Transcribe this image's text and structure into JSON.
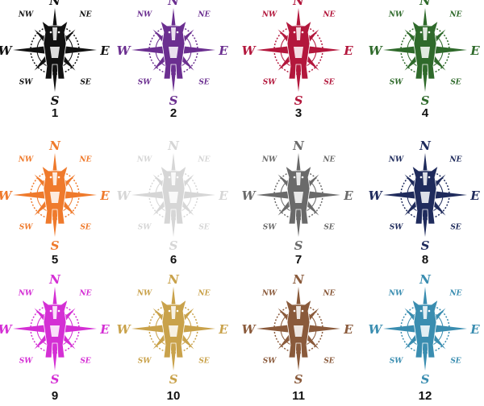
{
  "compass_labels": {
    "n": "N",
    "e": "E",
    "s": "S",
    "w": "W",
    "ne": "NE",
    "nw": "NW",
    "se": "SE",
    "sw": "SW"
  },
  "items": [
    {
      "label": "1",
      "color": "#111111"
    },
    {
      "label": "2",
      "color": "#6b2f90"
    },
    {
      "label": "3",
      "color": "#b3173c"
    },
    {
      "label": "4",
      "color": "#2f6a2b"
    },
    {
      "label": "5",
      "color": "#ef7a2c"
    },
    {
      "label": "6",
      "color": "#d6d6d6"
    },
    {
      "label": "7",
      "color": "#6a6a6a"
    },
    {
      "label": "8",
      "color": "#1f2b5c"
    },
    {
      "label": "9",
      "color": "#d42fd4"
    },
    {
      "label": "10",
      "color": "#c9a24b"
    },
    {
      "label": "11",
      "color": "#8a5a3b"
    },
    {
      "label": "12",
      "color": "#3a8db0"
    }
  ]
}
